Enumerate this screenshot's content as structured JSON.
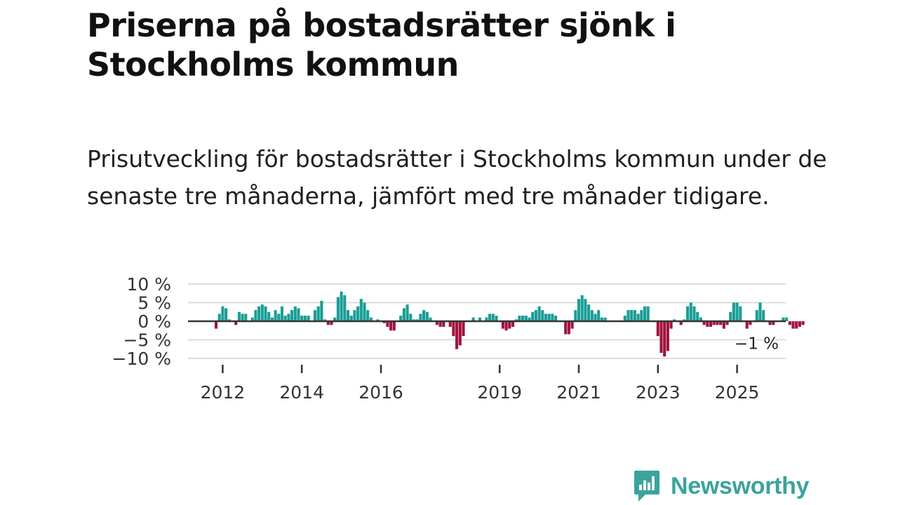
{
  "title": "Priserna på bostadsrätter sjönk i Stockholms kommun",
  "subtitle": "Prisutveckling för bostadsrätter i Stockholms kommun under de senaste tre månaderna, jämfört med tre månader tidigare.",
  "brand": {
    "name": "Newsworthy",
    "color": "#3aa39d",
    "icon": "bar-chart-speech-bubble-icon"
  },
  "colors": {
    "positive": "#1a9e95",
    "negative": "#a1133f",
    "grid": "#dcdcdc",
    "axis": "#333333"
  },
  "chart_data": {
    "type": "bar",
    "title": "",
    "xlabel": "",
    "ylabel": "",
    "ylim": [
      -11,
      11
    ],
    "y_ticks": [
      10,
      5,
      0,
      -5,
      -10
    ],
    "y_tick_labels": [
      "10 %",
      "5 %",
      "0 %",
      "−5 %",
      "−10 %"
    ],
    "x_start": {
      "year": 2011,
      "month": 11
    },
    "x_ticks": [
      2012,
      2014,
      2016,
      2019,
      2021,
      2023,
      2025
    ],
    "x_tick_labels": [
      "2012",
      "2014",
      "2016",
      "2019",
      "2021",
      "2023",
      "2025"
    ],
    "grid": true,
    "last_value_label": "−1 %",
    "values": [
      -2,
      2,
      4,
      3.5,
      0.5,
      0,
      -1,
      2.5,
      2,
      2,
      0,
      1,
      3,
      4,
      4.5,
      4,
      2.5,
      1,
      3,
      2,
      4,
      1.5,
      2,
      3,
      4,
      3.5,
      1.5,
      1.5,
      1.5,
      0,
      3,
      4,
      5.5,
      0.5,
      -1,
      -1,
      1,
      6.5,
      8,
      7,
      3,
      1.5,
      3,
      4,
      6,
      5,
      3,
      1,
      0,
      0.5,
      0,
      -0.5,
      -1.5,
      -2.5,
      -2.5,
      0,
      1.5,
      3.5,
      4.5,
      2,
      0.5,
      0.5,
      2,
      3,
      2.5,
      1,
      0,
      -1,
      -1.5,
      -1.5,
      0,
      -1.5,
      -4,
      -7.5,
      -6.5,
      -4,
      0,
      0,
      1,
      0,
      1,
      0,
      1,
      2,
      2,
      1.5,
      0,
      -2,
      -2.5,
      -2,
      -1.5,
      0.5,
      1.5,
      1.5,
      1.5,
      1,
      2.5,
      3,
      4,
      3,
      2,
      2,
      2,
      1.5,
      0,
      0,
      -3.5,
      -3.5,
      -2,
      3,
      6,
      7,
      6,
      4.5,
      3,
      2,
      3,
      1,
      1,
      0,
      0,
      0,
      0,
      0,
      1.5,
      3,
      3,
      3,
      2,
      3,
      4,
      4,
      0,
      0,
      -4,
      -8.5,
      -9.5,
      -8,
      -2,
      0.5,
      0,
      -1,
      0.5,
      4,
      5,
      4,
      2.5,
      1,
      -1,
      -1.5,
      -1.5,
      -1,
      -1,
      -1,
      -2,
      -1,
      2.5,
      5,
      5,
      4,
      0,
      -2,
      -1,
      0,
      3,
      5,
      3,
      0,
      -1,
      -1,
      0,
      0,
      1,
      1,
      -1,
      -2,
      -2,
      -1.5,
      -1
    ]
  }
}
